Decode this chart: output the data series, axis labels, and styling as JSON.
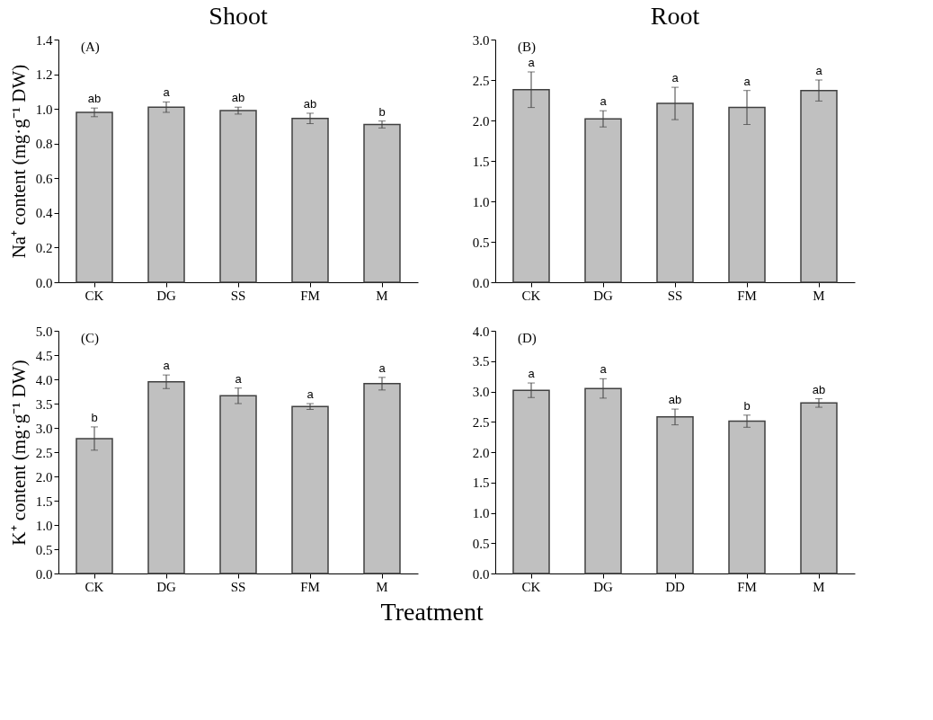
{
  "chart_data": [
    {
      "type": "bar",
      "title": "Shoot",
      "ylabel": "Na⁺ content (mg·g⁻¹ DW)",
      "categories": [
        "CK",
        "DG",
        "SS",
        "FM",
        "M"
      ],
      "values": [
        0.98,
        1.01,
        0.99,
        0.945,
        0.91
      ],
      "errors": [
        0.025,
        0.03,
        0.02,
        0.03,
        0.02
      ],
      "color": "#c0c0c0",
      "ylim": [
        0,
        1.4
      ],
      "yticks": [
        {
          "value": 0,
          "label": "0.0"
        },
        {
          "value": 0.2,
          "label": "0.2"
        },
        {
          "value": 0.4,
          "label": "0.4"
        },
        {
          "value": 0.6,
          "label": "0.6"
        },
        {
          "value": 0.8,
          "label": "0.8"
        },
        {
          "value": 1,
          "label": "1.0"
        },
        {
          "value": 1.2,
          "label": "1.2"
        },
        {
          "value": 1.4,
          "label": "1.4"
        }
      ],
      "annotations": [
        "(A)",
        {
          "text": "ab",
          "x": "CK",
          "y": 1.005
        },
        {
          "text": "a",
          "x": "DG",
          "y": 1.04
        },
        {
          "text": "ab",
          "x": "SS",
          "y": 1.01
        },
        {
          "text": "ab",
          "x": "FM",
          "y": 0.975
        },
        {
          "text": "b",
          "x": "M",
          "y": 0.93
        }
      ]
    },
    {
      "type": "bar",
      "title": "Root",
      "categories": [
        "CK",
        "DG",
        "SS",
        "FM",
        "M"
      ],
      "values": [
        2.38,
        2.02,
        2.21,
        2.16,
        2.37
      ],
      "errors": [
        0.22,
        0.1,
        0.2,
        0.21,
        0.13
      ],
      "color": "#c0c0c0",
      "ylim": [
        0,
        3
      ],
      "yticks": [
        {
          "value": 0,
          "label": "0.0"
        },
        {
          "value": 0.5,
          "label": "0.5"
        },
        {
          "value": 1,
          "label": "1.0"
        },
        {
          "value": 1.5,
          "label": "1.5"
        },
        {
          "value": 2,
          "label": "2.0"
        },
        {
          "value": 2.5,
          "label": "2.5"
        },
        {
          "value": 3,
          "label": "3.0"
        }
      ],
      "annotations": [
        "(B)",
        {
          "text": "a",
          "x": "CK",
          "y": 2.6
        },
        {
          "text": "a",
          "x": "DG",
          "y": 2.12
        },
        {
          "text": "a",
          "x": "SS",
          "y": 2.41
        },
        {
          "text": "a",
          "x": "FM",
          "y": 2.37
        },
        {
          "text": "a",
          "x": "M",
          "y": 2.5
        }
      ]
    },
    {
      "type": "bar",
      "ylabel": "K⁺ content (mg·g⁻¹ DW)",
      "xlabel": "Treatment",
      "categories": [
        "CK",
        "DG",
        "SS",
        "FM",
        "M"
      ],
      "values": [
        2.78,
        3.95,
        3.66,
        3.44,
        3.91
      ],
      "errors": [
        0.24,
        0.14,
        0.16,
        0.06,
        0.13
      ],
      "color": "#c0c0c0",
      "ylim": [
        0,
        5
      ],
      "yticks": [
        {
          "value": 0,
          "label": "0.0"
        },
        {
          "value": 0.5,
          "label": "0.5"
        },
        {
          "value": 1,
          "label": "1.0"
        },
        {
          "value": 1.5,
          "label": "1.5"
        },
        {
          "value": 2,
          "label": "2.0"
        },
        {
          "value": 2.5,
          "label": "2.5"
        },
        {
          "value": 3,
          "label": "3.0"
        },
        {
          "value": 3.5,
          "label": "3.5"
        },
        {
          "value": 4,
          "label": "4.0"
        },
        {
          "value": 4.5,
          "label": "4.5"
        },
        {
          "value": 5,
          "label": "5.0"
        }
      ],
      "annotations": [
        "(C)",
        {
          "text": "b",
          "x": "CK",
          "y": 3.02
        },
        {
          "text": "a",
          "x": "DG",
          "y": 4.09
        },
        {
          "text": "a",
          "x": "SS",
          "y": 3.82
        },
        {
          "text": "a",
          "x": "FM",
          "y": 3.5
        },
        {
          "text": "a",
          "x": "M",
          "y": 4.04
        }
      ]
    },
    {
      "type": "bar",
      "categories": [
        "CK",
        "DG",
        "DD",
        "FM",
        "M"
      ],
      "values": [
        3.02,
        3.05,
        2.58,
        2.51,
        2.81
      ],
      "errors": [
        0.12,
        0.16,
        0.13,
        0.1,
        0.07
      ],
      "color": "#c0c0c0",
      "ylim": [
        0,
        4
      ],
      "yticks": [
        {
          "value": 0,
          "label": "0.0"
        },
        {
          "value": 0.5,
          "label": "0.5"
        },
        {
          "value": 1,
          "label": "1.0"
        },
        {
          "value": 1.5,
          "label": "1.5"
        },
        {
          "value": 2,
          "label": "2.0"
        },
        {
          "value": 2.5,
          "label": "2.5"
        },
        {
          "value": 3,
          "label": "3.0"
        },
        {
          "value": 3.5,
          "label": "3.5"
        },
        {
          "value": 4,
          "label": "4.0"
        }
      ],
      "annotations": [
        "(D)",
        {
          "text": "a",
          "x": "CK",
          "y": 3.14
        },
        {
          "text": "a",
          "x": "DG",
          "y": 3.21
        },
        {
          "text": "ab",
          "x": "DD",
          "y": 2.71
        },
        {
          "text": "b",
          "x": "FM",
          "y": 2.61
        },
        {
          "text": "ab",
          "x": "M",
          "y": 2.88
        }
      ]
    }
  ]
}
